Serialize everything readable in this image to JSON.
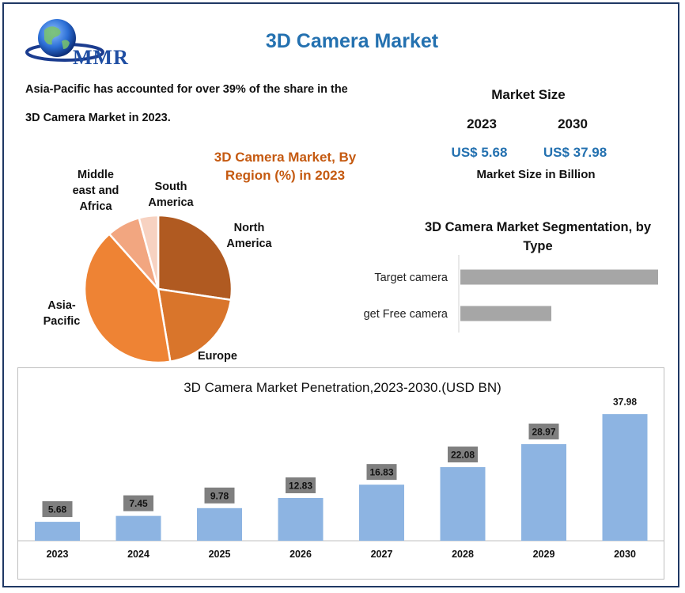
{
  "brand": {
    "name": "MMR"
  },
  "header": {
    "title": "3D Camera Market"
  },
  "notes": {
    "line1": "Asia-Pacific has accounted for over 39% of the share in the",
    "line2": "3D Camera Market in 2023."
  },
  "market_size": {
    "title": "Market Size",
    "year_a": "2023",
    "year_b": "2030",
    "value_a": "US$ 5.68",
    "value_b": "US$ 37.98",
    "unit": "Market Size in Billion"
  },
  "colors": {
    "accent": "#2471b0",
    "pie_title": "#c55a11",
    "bar_fill": "#8db4e2",
    "segment_bar": "#a6a6a6",
    "label_box": "#7f7f7f"
  },
  "chart_data": [
    {
      "type": "pie",
      "title": "3D Camera Market, By Region (%) in 2023",
      "slices": [
        {
          "label": "North America",
          "value": 26,
          "color": "#b05a21"
        },
        {
          "label": "Europe",
          "value": 19,
          "color": "#d9752b"
        },
        {
          "label": "Asia-Pacific",
          "value": 39,
          "color": "#ee8334"
        },
        {
          "label": "Middle east and Africa",
          "value": 7,
          "color": "#f2a680"
        },
        {
          "label": "South America",
          "value": 4,
          "color": "#f7d2c1"
        }
      ]
    },
    {
      "type": "bar",
      "orientation": "horizontal",
      "title": "3D Camera  Market Segmentation, by Type",
      "categories": [
        "Target camera",
        "get Free camera"
      ],
      "values": [
        100,
        46
      ],
      "xlim": [
        0,
        100
      ]
    },
    {
      "type": "bar",
      "title": "3D Camera Market Penetration,2023-2030.(USD BN)",
      "categories": [
        "2023",
        "2024",
        "2025",
        "2026",
        "2027",
        "2028",
        "2029",
        "2030"
      ],
      "values": [
        5.68,
        7.45,
        9.78,
        12.83,
        16.83,
        22.08,
        28.97,
        37.98
      ],
      "labels": [
        "5.68",
        "7.45",
        "9.78",
        "12.83",
        "16.83",
        "22.08",
        "28.97",
        "37.98"
      ],
      "ylim": [
        0,
        38
      ]
    }
  ]
}
